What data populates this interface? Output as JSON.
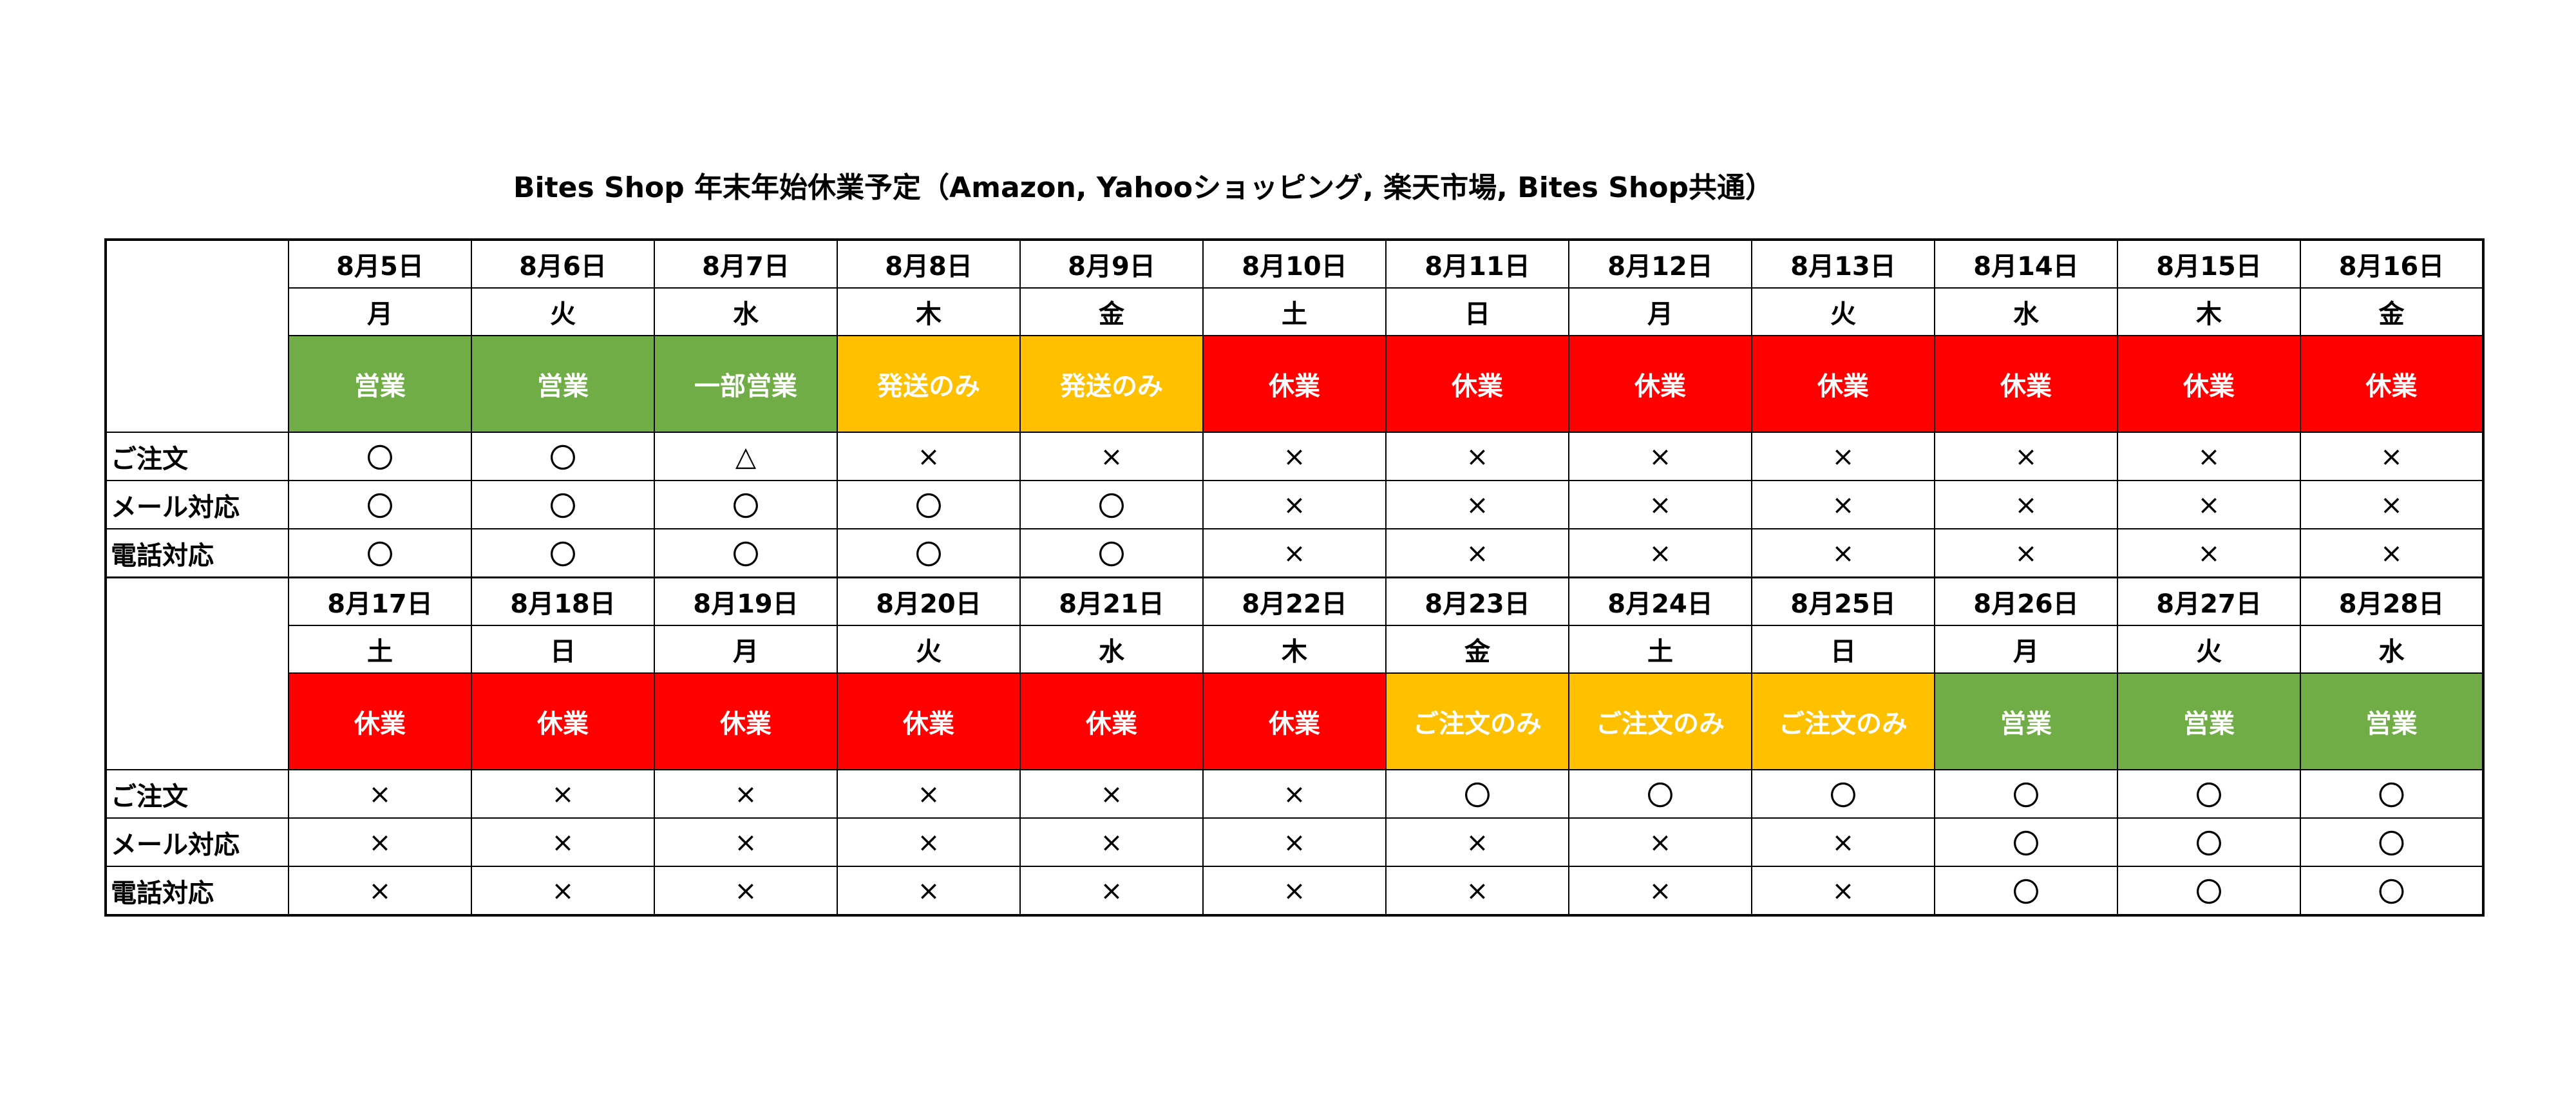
{
  "title": "Bites Shop 年末年始休業予定（Amazon, Yahooショッピング, 楽天市場, Bites Shop共通）",
  "row_labels": {
    "order": "ご注文",
    "mail": "メール対応",
    "phone": "電話対応"
  },
  "colors": {
    "open": "#70ad47",
    "partial": "#ffc000",
    "closed": "#ff0000"
  },
  "blocks": [
    {
      "days": [
        {
          "date": "8月5日",
          "dow": "月",
          "status": "営業",
          "kind": "green",
          "order": "〇",
          "mail": "〇",
          "phone": "〇"
        },
        {
          "date": "8月6日",
          "dow": "火",
          "status": "営業",
          "kind": "green",
          "order": "〇",
          "mail": "〇",
          "phone": "〇"
        },
        {
          "date": "8月7日",
          "dow": "水",
          "status": "一部営業",
          "kind": "green",
          "order": "△",
          "mail": "〇",
          "phone": "〇"
        },
        {
          "date": "8月8日",
          "dow": "木",
          "status": "発送のみ",
          "kind": "yellow",
          "order": "×",
          "mail": "〇",
          "phone": "〇"
        },
        {
          "date": "8月9日",
          "dow": "金",
          "status": "発送のみ",
          "kind": "yellow",
          "order": "×",
          "mail": "〇",
          "phone": "〇"
        },
        {
          "date": "8月10日",
          "dow": "土",
          "status": "休業",
          "kind": "red",
          "order": "×",
          "mail": "×",
          "phone": "×"
        },
        {
          "date": "8月11日",
          "dow": "日",
          "status": "休業",
          "kind": "red",
          "order": "×",
          "mail": "×",
          "phone": "×"
        },
        {
          "date": "8月12日",
          "dow": "月",
          "status": "休業",
          "kind": "red",
          "order": "×",
          "mail": "×",
          "phone": "×"
        },
        {
          "date": "8月13日",
          "dow": "火",
          "status": "休業",
          "kind": "red",
          "order": "×",
          "mail": "×",
          "phone": "×"
        },
        {
          "date": "8月14日",
          "dow": "水",
          "status": "休業",
          "kind": "red",
          "order": "×",
          "mail": "×",
          "phone": "×"
        },
        {
          "date": "8月15日",
          "dow": "木",
          "status": "休業",
          "kind": "red",
          "order": "×",
          "mail": "×",
          "phone": "×"
        },
        {
          "date": "8月16日",
          "dow": "金",
          "status": "休業",
          "kind": "red",
          "order": "×",
          "mail": "×",
          "phone": "×"
        }
      ]
    },
    {
      "days": [
        {
          "date": "8月17日",
          "dow": "土",
          "status": "休業",
          "kind": "red",
          "order": "×",
          "mail": "×",
          "phone": "×"
        },
        {
          "date": "8月18日",
          "dow": "日",
          "status": "休業",
          "kind": "red",
          "order": "×",
          "mail": "×",
          "phone": "×"
        },
        {
          "date": "8月19日",
          "dow": "月",
          "status": "休業",
          "kind": "red",
          "order": "×",
          "mail": "×",
          "phone": "×"
        },
        {
          "date": "8月20日",
          "dow": "火",
          "status": "休業",
          "kind": "red",
          "order": "×",
          "mail": "×",
          "phone": "×"
        },
        {
          "date": "8月21日",
          "dow": "水",
          "status": "休業",
          "kind": "red",
          "order": "×",
          "mail": "×",
          "phone": "×"
        },
        {
          "date": "8月22日",
          "dow": "木",
          "status": "休業",
          "kind": "red",
          "order": "×",
          "mail": "×",
          "phone": "×"
        },
        {
          "date": "8月23日",
          "dow": "金",
          "status": "ご注文のみ",
          "kind": "yellow",
          "order": "〇",
          "mail": "×",
          "phone": "×"
        },
        {
          "date": "8月24日",
          "dow": "土",
          "status": "ご注文のみ",
          "kind": "yellow",
          "order": "〇",
          "mail": "×",
          "phone": "×"
        },
        {
          "date": "8月25日",
          "dow": "日",
          "status": "ご注文のみ",
          "kind": "yellow",
          "order": "〇",
          "mail": "×",
          "phone": "×"
        },
        {
          "date": "8月26日",
          "dow": "月",
          "status": "営業",
          "kind": "green",
          "order": "〇",
          "mail": "〇",
          "phone": "〇"
        },
        {
          "date": "8月27日",
          "dow": "火",
          "status": "営業",
          "kind": "green",
          "order": "〇",
          "mail": "〇",
          "phone": "〇"
        },
        {
          "date": "8月28日",
          "dow": "水",
          "status": "営業",
          "kind": "green",
          "order": "〇",
          "mail": "〇",
          "phone": "〇"
        }
      ]
    }
  ]
}
